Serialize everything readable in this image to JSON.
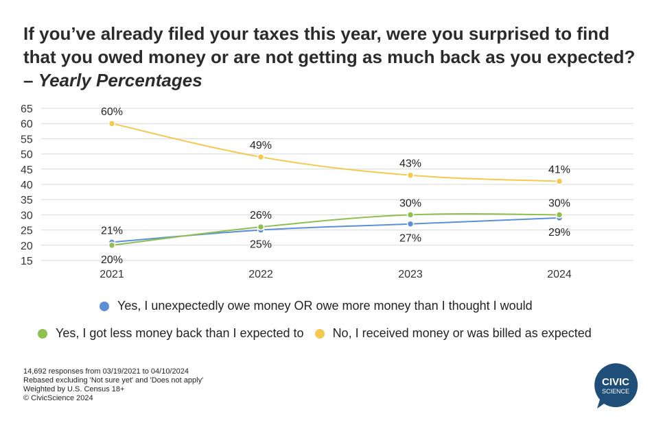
{
  "title": {
    "main": "If you’ve already filed your taxes this year, were you surprised to find that you owed money or are not getting as much back as you expected? – ",
    "italic": "Yearly Percentages"
  },
  "chart_data": {
    "type": "line",
    "categories": [
      "2021",
      "2022",
      "2023",
      "2024"
    ],
    "ylim": [
      15,
      65
    ],
    "yticks": [
      15,
      20,
      25,
      30,
      35,
      40,
      45,
      50,
      55,
      60,
      65
    ],
    "grid": true,
    "series": [
      {
        "name": "Yes, I unexpectedly owe money OR owe more money than I thought I would",
        "color": "#5b8fd9",
        "values": [
          21,
          25,
          27,
          29
        ],
        "labels": [
          "21%",
          "25%",
          "27%",
          "29%"
        ]
      },
      {
        "name": "Yes, I got less money back than I expected to",
        "color": "#8dc04f",
        "values": [
          20,
          26,
          30,
          30
        ],
        "labels": [
          "20%",
          "26%",
          "30%",
          "30%"
        ]
      },
      {
        "name": "No, I received money or was billed as expected",
        "color": "#f5c94e",
        "values": [
          60,
          49,
          43,
          41
        ],
        "labels": [
          "60%",
          "49%",
          "43%",
          "41%"
        ]
      }
    ]
  },
  "footnotes": [
    "14,692 responses from 03/19/2021 to 04/10/2024",
    "Rebased excluding 'Not sure yet' and 'Does not apply'",
    "Weighted by U.S. Census 18+",
    "© CivicScience 2024"
  ],
  "logo": {
    "line1": "CIVIC",
    "line2": "SCIENCE",
    "color": "#1f4e79"
  }
}
